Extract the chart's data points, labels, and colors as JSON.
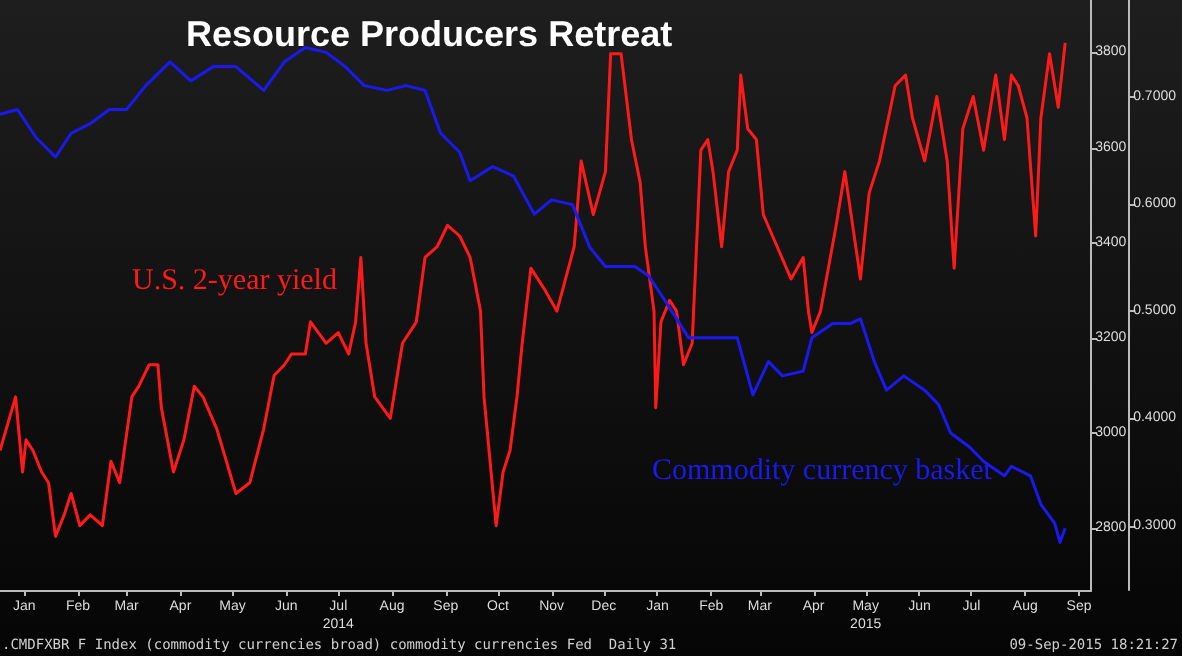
{
  "chart_data": {
    "type": "line",
    "title": "Resource Producers Retreat",
    "annotations": [
      ".CMDFXBR F Index (commodity currencies broad) commodity currencies Fed  Daily 31",
      "09-Sep-2015 18:21:27"
    ],
    "series": [
      {
        "name": "U.S. 2-year yield",
        "color": "#ff1a1a",
        "axis": "y2",
        "x": [
          "2014-01-01",
          "2014-01-10",
          "2014-01-14",
          "2014-01-16",
          "2014-01-20",
          "2014-01-25",
          "2014-01-29",
          "2014-02-02",
          "2014-02-07",
          "2014-02-11",
          "2014-02-16",
          "2014-02-22",
          "2014-03-01",
          "2014-03-06",
          "2014-03-11",
          "2014-03-18",
          "2014-03-22",
          "2014-03-28",
          "2014-04-02",
          "2014-04-04",
          "2014-04-11",
          "2014-04-17",
          "2014-04-23",
          "2014-04-28",
          "2014-05-06",
          "2014-05-17",
          "2014-05-25",
          "2014-06-02",
          "2014-06-08",
          "2014-06-14",
          "2014-06-18",
          "2014-06-26",
          "2014-06-29",
          "2014-07-08",
          "2014-07-15",
          "2014-07-21",
          "2014-07-25",
          "2014-07-28",
          "2014-07-31",
          "2014-08-05",
          "2014-08-14",
          "2014-08-21",
          "2014-08-29",
          "2014-09-03",
          "2014-09-10",
          "2014-09-16",
          "2014-09-23",
          "2014-09-29",
          "2014-10-05",
          "2014-10-07",
          "2014-10-14",
          "2014-10-18",
          "2014-10-22",
          "2014-10-26",
          "2014-10-29",
          "2014-11-03",
          "2014-11-11",
          "2014-11-18",
          "2014-11-28",
          "2014-12-02",
          "2014-12-09",
          "2014-12-16",
          "2014-12-19",
          "2014-12-25",
          "2014-12-31",
          "2015-01-05",
          "2015-01-08",
          "2015-01-13",
          "2015-01-14",
          "2015-01-17",
          "2015-01-22",
          "2015-01-26",
          "2015-01-30",
          "2015-02-04",
          "2015-02-09",
          "2015-02-13",
          "2015-02-16",
          "2015-02-21",
          "2015-02-25",
          "2015-03-02",
          "2015-03-04",
          "2015-03-08",
          "2015-03-13",
          "2015-03-17",
          "2015-03-25",
          "2015-04-02",
          "2015-04-09",
          "2015-04-12",
          "2015-04-14",
          "2015-04-19",
          "2015-04-28",
          "2015-05-03",
          "2015-05-12",
          "2015-05-17",
          "2015-05-23",
          "2015-06-01",
          "2015-06-07",
          "2015-06-11",
          "2015-06-18",
          "2015-06-25",
          "2015-07-01",
          "2015-07-05",
          "2015-07-10",
          "2015-07-16",
          "2015-07-22",
          "2015-07-29",
          "2015-08-03",
          "2015-08-07",
          "2015-08-11",
          "2015-08-16",
          "2015-08-21",
          "2015-08-24",
          "2015-08-29",
          "2015-09-03",
          "2015-09-07"
        ],
        "values": [
          0.37,
          0.42,
          0.35,
          0.38,
          0.37,
          0.35,
          0.34,
          0.29,
          0.31,
          0.33,
          0.3,
          0.31,
          0.3,
          0.36,
          0.34,
          0.42,
          0.43,
          0.45,
          0.45,
          0.41,
          0.35,
          0.38,
          0.43,
          0.42,
          0.39,
          0.33,
          0.34,
          0.39,
          0.44,
          0.45,
          0.46,
          0.46,
          0.49,
          0.47,
          0.48,
          0.46,
          0.49,
          0.55,
          0.47,
          0.42,
          0.4,
          0.47,
          0.49,
          0.55,
          0.56,
          0.58,
          0.57,
          0.55,
          0.5,
          0.42,
          0.3,
          0.35,
          0.37,
          0.42,
          0.47,
          0.54,
          0.52,
          0.5,
          0.56,
          0.64,
          0.59,
          0.63,
          0.74,
          0.74,
          0.66,
          0.62,
          0.56,
          0.5,
          0.41,
          0.49,
          0.51,
          0.5,
          0.45,
          0.47,
          0.65,
          0.66,
          0.63,
          0.56,
          0.63,
          0.65,
          0.72,
          0.67,
          0.66,
          0.59,
          0.56,
          0.53,
          0.55,
          0.5,
          0.48,
          0.5,
          0.58,
          0.63,
          0.53,
          0.61,
          0.64,
          0.71,
          0.72,
          0.68,
          0.64,
          0.7,
          0.64,
          0.54,
          0.67,
          0.7,
          0.65,
          0.72,
          0.66,
          0.72,
          0.71,
          0.68,
          0.57,
          0.68,
          0.74,
          0.69,
          0.75
        ]
      },
      {
        "name": "Commodity currency basket",
        "color": "#1a1aee",
        "x": [
          "2014-01-01",
          "2014-01-11",
          "2014-01-22",
          "2014-02-02",
          "2014-02-11",
          "2014-02-22",
          "2014-03-05",
          "2014-03-15",
          "2014-03-26",
          "2014-04-09",
          "2014-04-21",
          "2014-05-04",
          "2014-05-17",
          "2014-06-02",
          "2014-06-14",
          "2014-06-26",
          "2014-07-08",
          "2014-07-19",
          "2014-07-30",
          "2014-08-12",
          "2014-08-23",
          "2014-09-03",
          "2014-09-12",
          "2014-09-23",
          "2014-09-29",
          "2014-10-12",
          "2014-10-24",
          "2014-11-05",
          "2014-11-15",
          "2014-11-27",
          "2014-12-07",
          "2014-12-16",
          "2015-01-02",
          "2015-01-10",
          "2015-01-19",
          "2015-02-02",
          "2015-02-14",
          "2015-03-02",
          "2015-03-11",
          "2015-03-20",
          "2015-03-28",
          "2015-04-09",
          "2015-04-14",
          "2015-04-26",
          "2015-05-06",
          "2015-05-12",
          "2015-05-20",
          "2015-05-27",
          "2015-06-06",
          "2015-06-18",
          "2015-06-26",
          "2015-07-03",
          "2015-07-14",
          "2015-07-22",
          "2015-08-03",
          "2015-08-07",
          "2015-08-18",
          "2015-08-24",
          "2015-09-01",
          "2015-09-04",
          "2015-09-07"
        ],
        "values": [
          3670,
          3680,
          3620,
          3580,
          3630,
          3650,
          3680,
          3680,
          3730,
          3780,
          3740,
          3770,
          3770,
          3720,
          3780,
          3810,
          3800,
          3770,
          3730,
          3720,
          3730,
          3720,
          3630,
          3590,
          3530,
          3560,
          3540,
          3460,
          3490,
          3480,
          3390,
          3350,
          3350,
          3330,
          3280,
          3200,
          3200,
          3200,
          3080,
          3150,
          3120,
          3130,
          3200,
          3230,
          3230,
          3240,
          3150,
          3090,
          3120,
          3090,
          3060,
          3000,
          2970,
          2940,
          2910,
          2930,
          2910,
          2850,
          2810,
          2770,
          2800
        ]
      }
    ],
    "xlim": [
      "2014-01-01",
      "2015-09-22"
    ],
    "xticks": [
      {
        "value": "2014-01-15",
        "label": "Jan"
      },
      {
        "value": "2014-02-15",
        "label": "Feb"
      },
      {
        "value": "2014-03-15",
        "label": "Mar"
      },
      {
        "value": "2014-04-15",
        "label": "Apr"
      },
      {
        "value": "2014-05-15",
        "label": "May"
      },
      {
        "value": "2014-06-15",
        "label": "Jun"
      },
      {
        "value": "2014-07-15",
        "label": "Jul\n2014"
      },
      {
        "value": "2014-08-15",
        "label": "Aug"
      },
      {
        "value": "2014-09-15",
        "label": "Sep"
      },
      {
        "value": "2014-10-15",
        "label": "Oct"
      },
      {
        "value": "2014-11-15",
        "label": "Nov"
      },
      {
        "value": "2014-12-15",
        "label": "Dec"
      },
      {
        "value": "2015-01-15",
        "label": "Jan"
      },
      {
        "value": "2015-02-15",
        "label": "Feb"
      },
      {
        "value": "2015-03-15",
        "label": "Mar"
      },
      {
        "value": "2015-04-15",
        "label": "Apr"
      },
      {
        "value": "2015-05-15",
        "label": "May\n2015"
      },
      {
        "value": "2015-06-15",
        "label": "Jun"
      },
      {
        "value": "2015-07-15",
        "label": "Jul"
      },
      {
        "value": "2015-08-15",
        "label": "Aug"
      },
      {
        "value": "2015-09-15",
        "label": "Sep"
      }
    ],
    "ylim": [
      2670,
      3910
    ],
    "yticks": [
      2800,
      3000,
      3200,
      3400,
      3600,
      3800
    ],
    "y2lim": [
      0.24,
      0.79
    ],
    "y2ticks": [
      {
        "value": 0.3,
        "label": "0.3000"
      },
      {
        "value": 0.4,
        "label": "0.4000"
      },
      {
        "value": 0.5,
        "label": "0.5000"
      },
      {
        "value": 0.6,
        "label": "0.6000"
      },
      {
        "value": 0.7,
        "label": "0.7000"
      }
    ],
    "grid": false,
    "legend": false,
    "line_style": "solid"
  }
}
